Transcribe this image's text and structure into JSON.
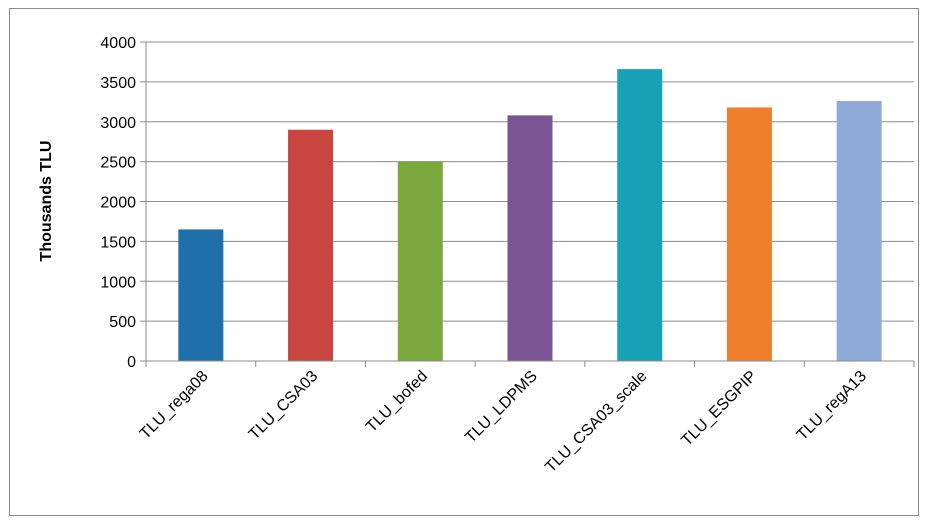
{
  "chart_data": {
    "type": "bar",
    "title": "",
    "xlabel": "",
    "ylabel": "Thousands TLU",
    "ylim": [
      0,
      4000
    ],
    "yticks": [
      0,
      500,
      1000,
      1500,
      2000,
      2500,
      3000,
      3500,
      4000
    ],
    "grid": true,
    "legend": "none",
    "categories": [
      "TLU_rega08",
      "TLU_CSA03",
      "TLU_bofed",
      "TLU_LDPMS",
      "TLU_CSA03_scale",
      "TLU_ESGPIP",
      "TLU_regA13"
    ],
    "values": [
      1650,
      2900,
      2500,
      3080,
      3660,
      3180,
      3260
    ],
    "colors": [
      "#1f6fa8",
      "#c8463f",
      "#7aa83d",
      "#7b5494",
      "#17a0b6",
      "#f07f2b",
      "#8eaad6"
    ]
  }
}
